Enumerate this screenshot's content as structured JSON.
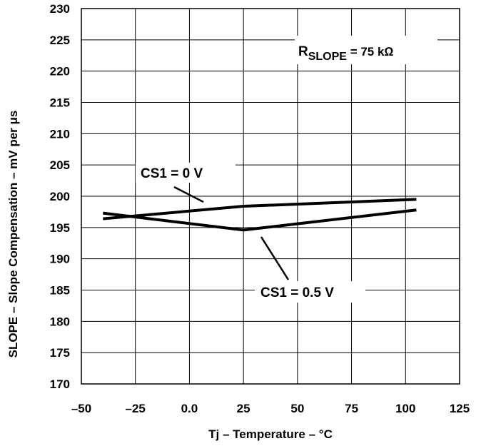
{
  "chart_data": {
    "type": "line",
    "title": "",
    "xlabel": "Tj – Temperature – °C",
    "ylabel": "SLOPE – Slope Compensation – mV per μs",
    "xlim": [
      -50,
      125
    ],
    "ylim": [
      170,
      230
    ],
    "x_ticks": [
      "–50",
      "–25",
      "0.0",
      "25",
      "50",
      "75",
      "100",
      "125"
    ],
    "y_ticks": [
      "170",
      "175",
      "180",
      "185",
      "190",
      "195",
      "200",
      "205",
      "210",
      "215",
      "220",
      "225",
      "230"
    ],
    "grid": true,
    "legend": "none",
    "series": [
      {
        "name": "CS1 = 0 V",
        "x": [
          -40,
          25,
          105
        ],
        "y": [
          196.4,
          198.4,
          199.5
        ]
      },
      {
        "name": "CS1 = 0.5 V",
        "x": [
          -40,
          25,
          105
        ],
        "y": [
          197.3,
          194.6,
          197.8
        ]
      }
    ],
    "annotations": {
      "r_main": "R",
      "r_sub": "SLOPE",
      "r_value": " = 75 kΩ"
    }
  }
}
